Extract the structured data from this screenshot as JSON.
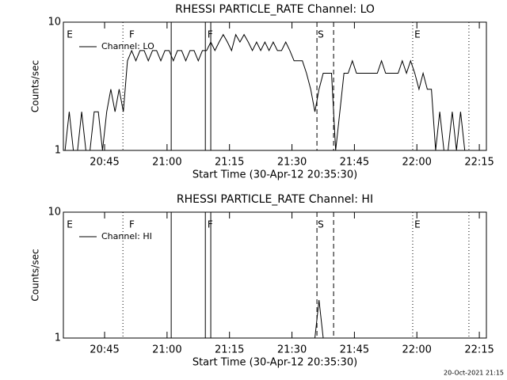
{
  "chart_data": [
    {
      "type": "line",
      "title": "RHESSI PARTICLE_RATE Channel: LO",
      "xlabel": "Start Time (30-Apr-12 20:35:30)",
      "ylabel": "Counts/sec",
      "log_y": true,
      "legend": "upper left",
      "xlim": [
        -0.4,
        101.2
      ],
      "ylim": [
        1,
        10
      ],
      "yticks": [
        1,
        10
      ],
      "xticks": [
        {
          "value": 9.5,
          "label": "20:45"
        },
        {
          "value": 24.5,
          "label": "21:00"
        },
        {
          "value": 39.5,
          "label": "21:15"
        },
        {
          "value": 54.5,
          "label": "21:30"
        },
        {
          "value": 69.5,
          "label": "21:45"
        },
        {
          "value": 84.5,
          "label": "22:00"
        },
        {
          "value": 99.5,
          "label": "22:15"
        }
      ],
      "event_lines": [
        {
          "x": 13.9,
          "style": "dotted"
        },
        {
          "x": 25.5,
          "style": "solid"
        },
        {
          "x": 33.7,
          "style": "solid"
        },
        {
          "x": 35.0,
          "style": "solid"
        },
        {
          "x": 60.5,
          "style": "dashed"
        },
        {
          "x": 64.5,
          "style": "dashed"
        },
        {
          "x": 83.5,
          "style": "dotted"
        },
        {
          "x": 97.0,
          "style": "dotted"
        }
      ],
      "flags": [
        {
          "label": "E",
          "x": 0.4
        },
        {
          "label": "F",
          "x": 15.4
        },
        {
          "label": "F",
          "x": 34.2
        },
        {
          "label": "S",
          "x": 60.7
        },
        {
          "label": "E",
          "x": 83.9
        }
      ],
      "x": [
        0,
        1,
        2,
        3,
        4,
        5,
        6,
        7,
        8,
        9,
        10,
        11,
        12,
        13,
        14,
        15,
        16,
        17,
        18,
        19,
        20,
        21,
        22,
        23,
        24,
        25,
        26,
        27,
        28,
        29,
        30,
        31,
        32,
        33,
        34,
        35,
        36,
        37,
        38,
        39,
        40,
        41,
        42,
        43,
        44,
        45,
        46,
        47,
        48,
        49,
        50,
        51,
        52,
        53,
        54,
        55,
        56,
        57,
        58,
        59,
        60,
        61,
        62,
        63,
        64,
        65,
        66,
        67,
        68,
        69,
        70,
        71,
        72,
        73,
        74,
        75,
        76,
        77,
        78,
        79,
        80,
        81,
        82,
        83,
        84,
        85,
        86,
        87,
        88,
        89,
        90,
        91,
        92,
        93,
        94,
        95,
        96,
        97
      ],
      "series": [
        {
          "name": "Channel: LO",
          "color": "#000000",
          "values": [
            1,
            2,
            1,
            1,
            2,
            1,
            1,
            2,
            2,
            1,
            2,
            3,
            2,
            3,
            2,
            5,
            6,
            5,
            6,
            6,
            5,
            6,
            6,
            5,
            6,
            6,
            5,
            6,
            6,
            5,
            6,
            6,
            5,
            6,
            6,
            7,
            6,
            7,
            8,
            7,
            6,
            8,
            7,
            8,
            7,
            6,
            7,
            6,
            7,
            6,
            7,
            6,
            6,
            7,
            6,
            5,
            5,
            5,
            4,
            3,
            2,
            3,
            4,
            4,
            4,
            1,
            2,
            4,
            4,
            5,
            4,
            4,
            4,
            4,
            4,
            4,
            5,
            4,
            4,
            4,
            4,
            5,
            4,
            5,
            4,
            3,
            4,
            3,
            3,
            1,
            2,
            1,
            1,
            2,
            1,
            2,
            1,
            1
          ]
        }
      ]
    },
    {
      "type": "line",
      "title": "RHESSI PARTICLE_RATE Channel: HI",
      "xlabel": "Start Time (30-Apr-12 20:35:30)",
      "ylabel": "Counts/sec",
      "log_y": true,
      "legend": "upper left",
      "xlim": [
        -0.4,
        101.2
      ],
      "ylim": [
        1,
        10
      ],
      "yticks": [
        1,
        10
      ],
      "xticks": [
        {
          "value": 9.5,
          "label": "20:45"
        },
        {
          "value": 24.5,
          "label": "21:00"
        },
        {
          "value": 39.5,
          "label": "21:15"
        },
        {
          "value": 54.5,
          "label": "21:30"
        },
        {
          "value": 69.5,
          "label": "21:45"
        },
        {
          "value": 84.5,
          "label": "22:00"
        },
        {
          "value": 99.5,
          "label": "22:15"
        }
      ],
      "event_lines": [
        {
          "x": 13.9,
          "style": "dotted"
        },
        {
          "x": 25.5,
          "style": "solid"
        },
        {
          "x": 33.7,
          "style": "solid"
        },
        {
          "x": 35.0,
          "style": "solid"
        },
        {
          "x": 60.5,
          "style": "dashed"
        },
        {
          "x": 64.5,
          "style": "dashed"
        },
        {
          "x": 83.5,
          "style": "dotted"
        },
        {
          "x": 97.0,
          "style": "dotted"
        }
      ],
      "flags": [
        {
          "label": "E",
          "x": 0.4
        },
        {
          "label": "F",
          "x": 15.4
        },
        {
          "label": "F",
          "x": 34.2
        },
        {
          "label": "S",
          "x": 60.7
        },
        {
          "label": "E",
          "x": 83.9
        }
      ],
      "x": [
        0,
        1,
        2,
        3,
        4,
        5,
        6,
        7,
        8,
        9,
        10,
        11,
        12,
        13,
        14,
        15,
        16,
        17,
        18,
        19,
        20,
        21,
        22,
        23,
        24,
        25,
        26,
        27,
        28,
        29,
        30,
        31,
        32,
        33,
        34,
        35,
        36,
        37,
        38,
        39,
        40,
        41,
        42,
        43,
        44,
        45,
        46,
        47,
        48,
        49,
        50,
        51,
        52,
        53,
        54,
        55,
        56,
        57,
        58,
        59,
        60,
        61,
        62,
        63,
        64,
        65,
        66,
        67,
        68,
        69,
        70,
        71,
        72,
        73,
        74,
        75,
        76,
        77,
        78,
        79,
        80,
        81,
        82,
        83,
        84,
        85,
        86,
        87,
        88,
        89,
        90,
        91,
        92,
        93,
        94,
        95,
        96,
        97
      ],
      "series": [
        {
          "name": "Channel: HI",
          "color": "#000000",
          "values": [
            1,
            1,
            1,
            1,
            1,
            1,
            1,
            1,
            1,
            1,
            1,
            1,
            1,
            1,
            1,
            1,
            1,
            1,
            1,
            1,
            1,
            1,
            1,
            1,
            1,
            1,
            1,
            1,
            1,
            1,
            1,
            1,
            1,
            1,
            1,
            1,
            1,
            1,
            1,
            1,
            1,
            1,
            1,
            1,
            1,
            1,
            1,
            1,
            1,
            1,
            1,
            1,
            1,
            1,
            1,
            1,
            1,
            1,
            1,
            1,
            1,
            2,
            1,
            1,
            1,
            1,
            1,
            1,
            1,
            1,
            1,
            1,
            1,
            1,
            1,
            1,
            1,
            1,
            1,
            1,
            1,
            1,
            1,
            1,
            1,
            1,
            1,
            1,
            1,
            1,
            1,
            1,
            1,
            1,
            1,
            1,
            1,
            1
          ]
        }
      ]
    }
  ],
  "footer": "20-Oct-2021 21:15"
}
